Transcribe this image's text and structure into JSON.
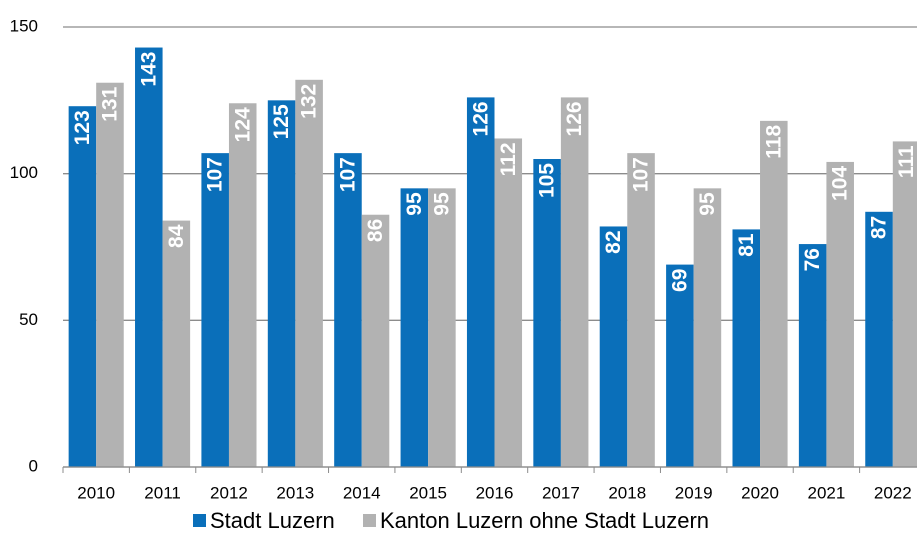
{
  "chart_data": {
    "type": "bar",
    "categories": [
      "2010",
      "2011",
      "2012",
      "2013",
      "2014",
      "2015",
      "2016",
      "2017",
      "2018",
      "2019",
      "2020",
      "2021",
      "2022"
    ],
    "series": [
      {
        "name": "Stadt Luzern",
        "color": "#0a6fba",
        "values": [
          123,
          143,
          107,
          125,
          107,
          95,
          126,
          105,
          82,
          69,
          81,
          76,
          87
        ]
      },
      {
        "name": "Kanton Luzern ohne Stadt Luzern",
        "color": "#b2b2b2",
        "values": [
          131,
          84,
          124,
          132,
          86,
          95,
          112,
          126,
          107,
          95,
          118,
          104,
          111
        ]
      }
    ],
    "ylim": [
      0,
      150
    ],
    "yticks": [
      0,
      50,
      100,
      150
    ],
    "grid": true,
    "legend": "bottom"
  }
}
